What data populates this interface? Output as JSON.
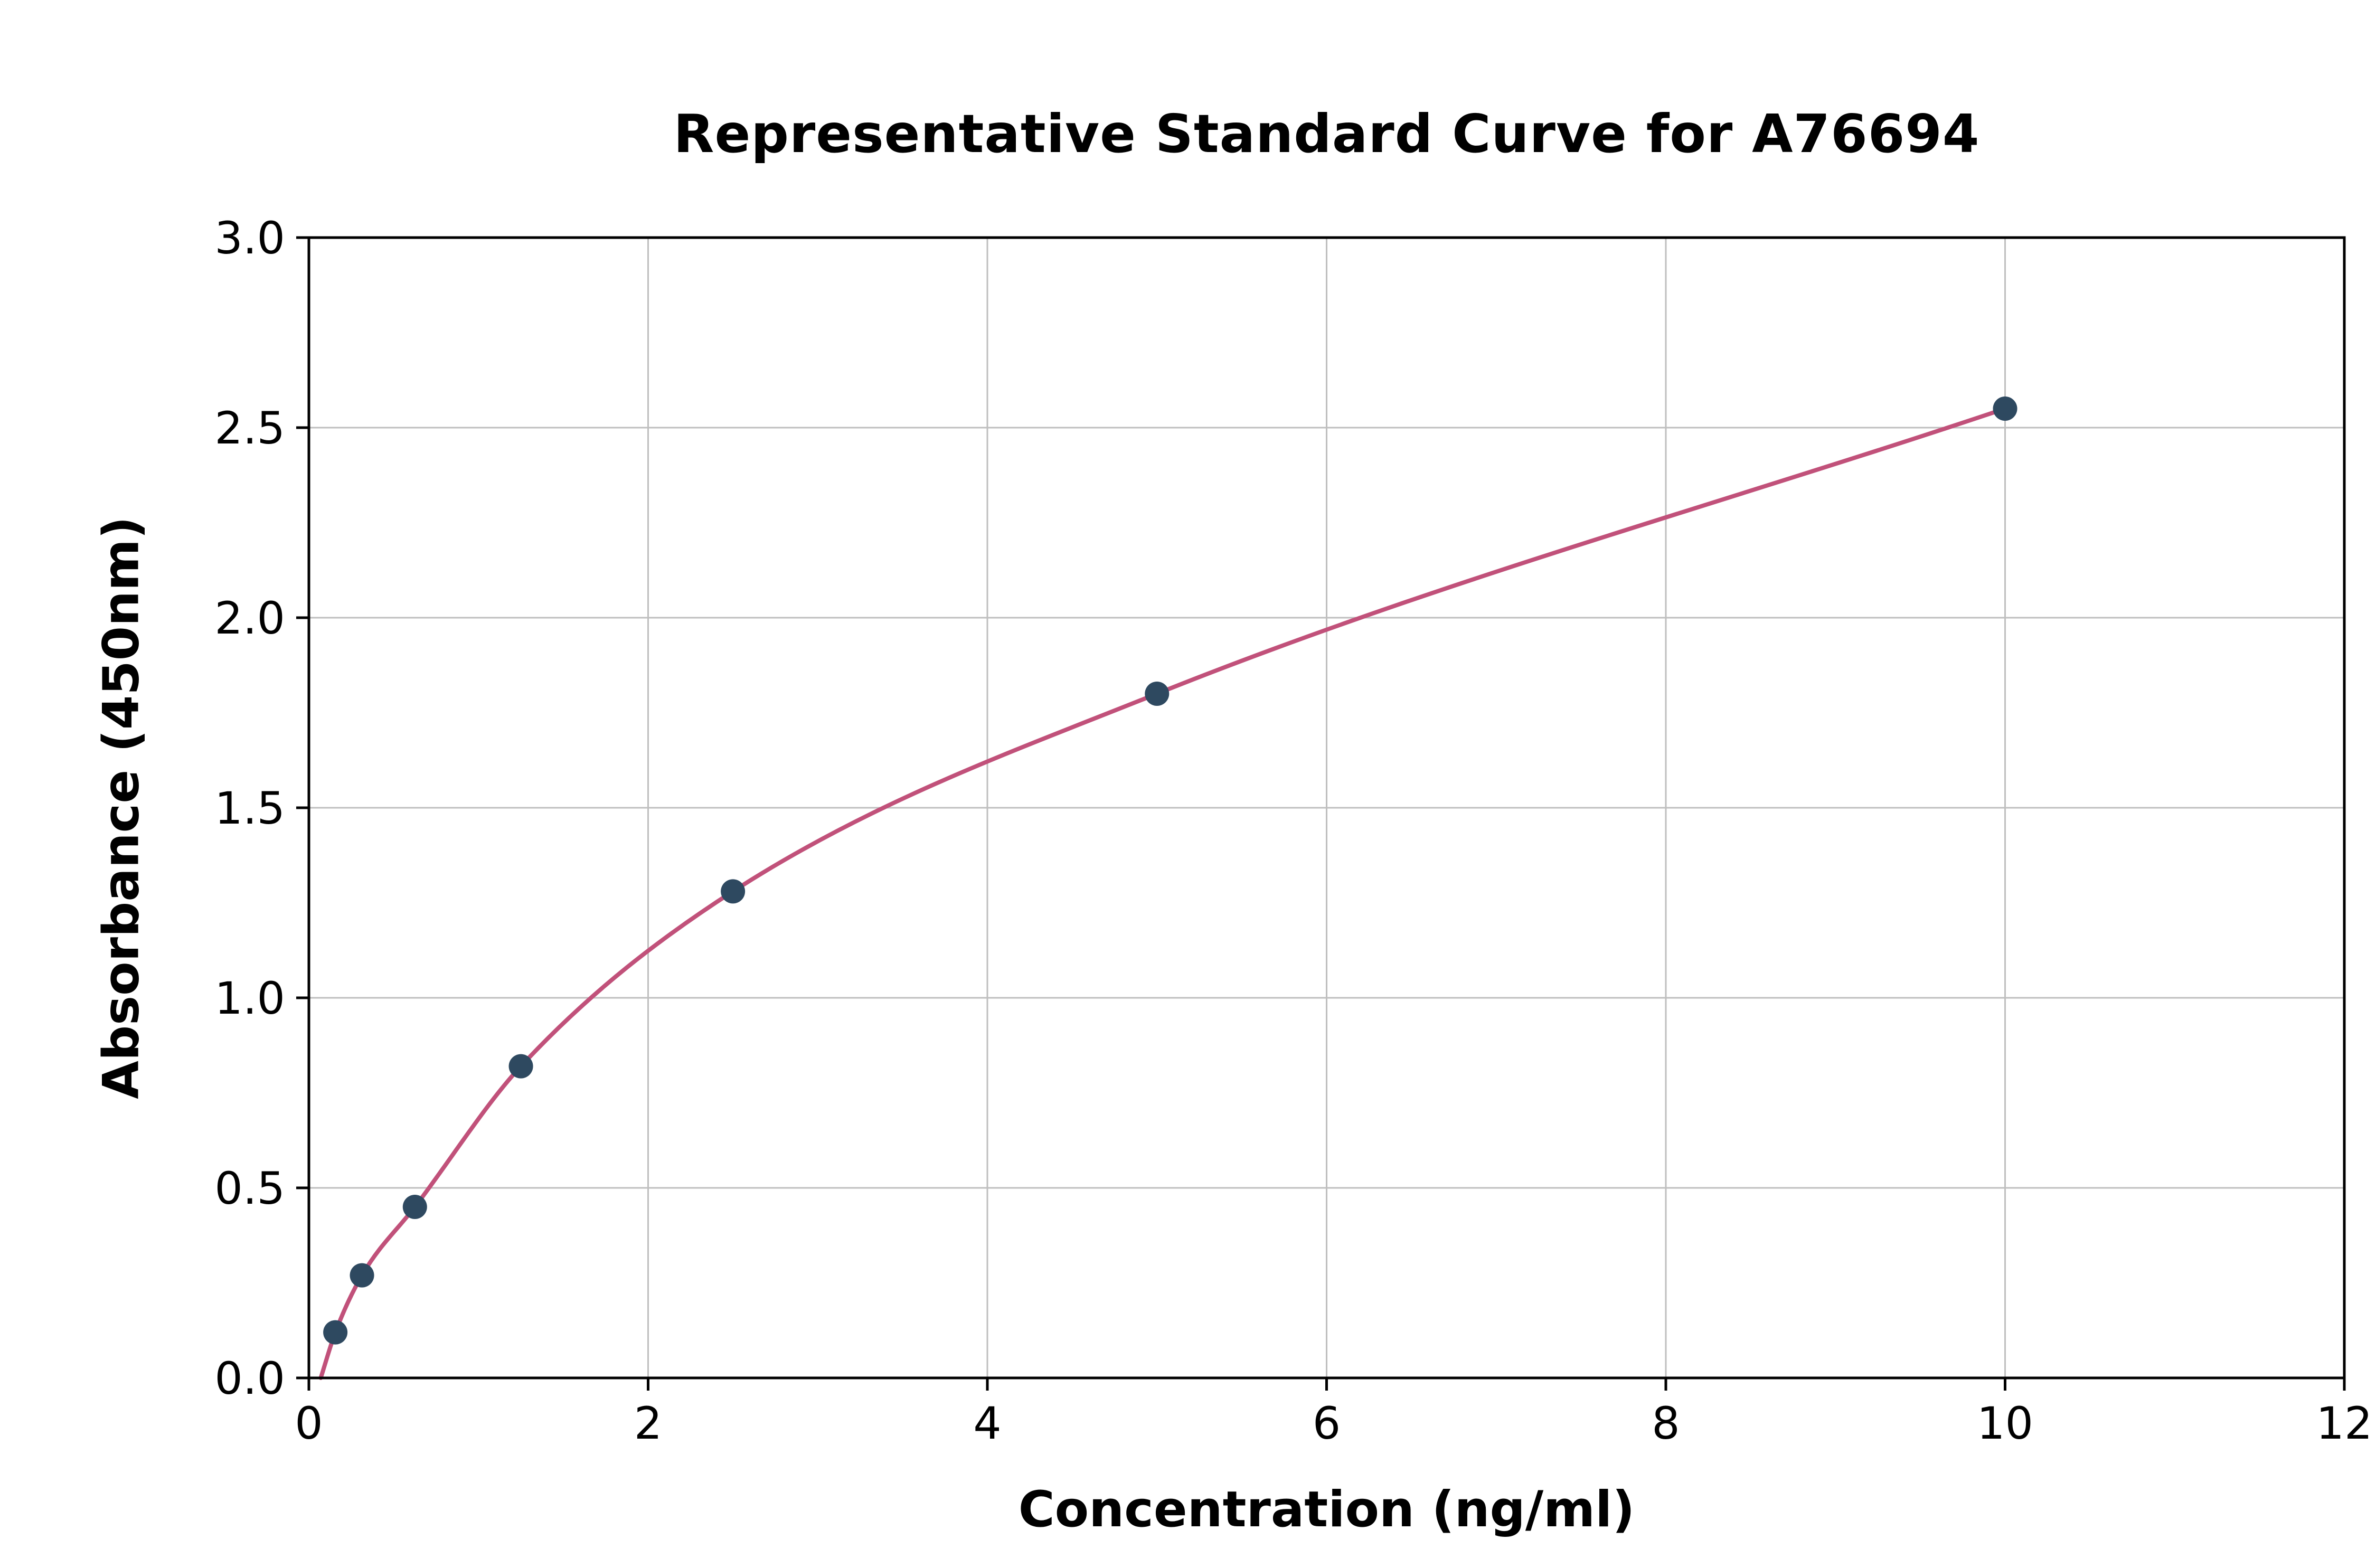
{
  "chart_data": {
    "type": "scatter",
    "title": "Representative Standard Curve for A76694",
    "xlabel": "Concentration (ng/ml)",
    "ylabel": "Absorbance (450nm)",
    "xlim": [
      0,
      12
    ],
    "ylim": [
      0,
      3.0
    ],
    "x_ticks": [
      0,
      2,
      4,
      6,
      8,
      10,
      12
    ],
    "x_tick_labels": [
      "0",
      "2",
      "4",
      "6",
      "8",
      "10",
      "12"
    ],
    "y_ticks": [
      0.0,
      0.5,
      1.0,
      1.5,
      2.0,
      2.5,
      3.0
    ],
    "y_tick_labels": [
      "0.0",
      "0.5",
      "1.0",
      "1.5",
      "2.0",
      "2.5",
      "3.0"
    ],
    "grid": true,
    "legend": "none",
    "points": [
      {
        "x": 0.156,
        "y": 0.12
      },
      {
        "x": 0.313,
        "y": 0.27
      },
      {
        "x": 0.625,
        "y": 0.45
      },
      {
        "x": 1.25,
        "y": 0.82
      },
      {
        "x": 2.5,
        "y": 1.28
      },
      {
        "x": 5,
        "y": 1.8
      },
      {
        "x": 10,
        "y": 2.55
      }
    ],
    "curve_start": {
      "x": 0.07,
      "y": 0.0
    },
    "colors": {
      "curve": "#c1517a",
      "point": "#2e4960",
      "grid": "#bfbfbf",
      "axis": "#000000",
      "background": "#ffffff"
    }
  }
}
